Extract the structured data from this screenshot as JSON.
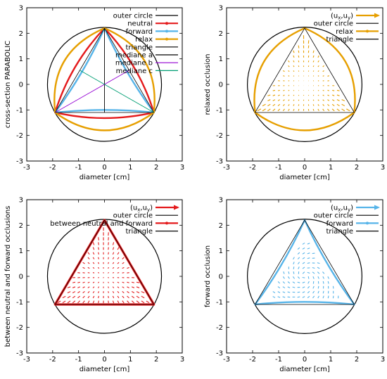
{
  "chart_data": [
    {
      "type": "line",
      "xlabel": "diameter [cm]",
      "ylabel": "cross-section PARABOLIC",
      "xlim": [
        -3,
        3
      ],
      "ylim": [
        -3,
        3
      ],
      "xticks": [
        "-3",
        "-2",
        "-1",
        "0",
        "1",
        "2",
        "3"
      ],
      "yticks": [
        "-3",
        "-2",
        "-1",
        "0",
        "1",
        "2",
        "3"
      ],
      "legend_position": "top-right",
      "series": [
        {
          "name": "outer circle",
          "kind": "circle",
          "color": "#000000",
          "radius": 2.2
        },
        {
          "name": "neutral",
          "kind": "curved-triangle",
          "color": "#e41a1c",
          "bulge": 0.22
        },
        {
          "name": "forward",
          "kind": "curved-triangle",
          "color": "#56b4e9",
          "bulge": -0.1
        },
        {
          "name": "relax",
          "kind": "curved-triangle",
          "color": "#e69f00",
          "bulge": 0.7
        },
        {
          "name": "triangle",
          "kind": "triangle",
          "color": "#000000",
          "vertices": [
            [
              0,
              2.2
            ],
            [
              -1.905,
              -1.1
            ],
            [
              1.905,
              -1.1
            ]
          ]
        },
        {
          "name": "mediane a",
          "kind": "segment",
          "color": "#000000",
          "from": [
            0,
            2.2
          ],
          "to": [
            0,
            -1.1
          ]
        },
        {
          "name": "mediane b",
          "kind": "segment",
          "color": "#9400d3",
          "from": [
            -1.905,
            -1.1
          ],
          "to": [
            0.95,
            0.55
          ]
        },
        {
          "name": "mediane c",
          "kind": "segment",
          "color": "#009e73",
          "from": [
            1.905,
            -1.1
          ],
          "to": [
            -0.95,
            0.55
          ]
        }
      ]
    },
    {
      "type": "line",
      "xlabel": "diameter [cm]",
      "ylabel": "relaxed occlusion",
      "xlim": [
        -3,
        3
      ],
      "ylim": [
        -3,
        3
      ],
      "xticks": [
        "-3",
        "-2",
        "-1",
        "0",
        "1",
        "2",
        "3"
      ],
      "yticks": [
        "-3",
        "-2",
        "-1",
        "0",
        "1",
        "2",
        "3"
      ],
      "legend_position": "top-right",
      "series": [
        {
          "name": "(u_x,u_y)",
          "kind": "vector-field",
          "color": "#e69f00",
          "field": "relax"
        },
        {
          "name": "outer circle",
          "kind": "circle",
          "color": "#000000",
          "radius": 2.2
        },
        {
          "name": "relax",
          "kind": "curved-triangle",
          "color": "#e69f00",
          "bulge": 0.7
        },
        {
          "name": "triangle",
          "kind": "triangle",
          "color": "#000000",
          "vertices": [
            [
              0,
              2.2
            ],
            [
              -1.905,
              -1.1
            ],
            [
              1.905,
              -1.1
            ]
          ]
        }
      ]
    },
    {
      "type": "line",
      "xlabel": "diameter [cm]",
      "ylabel": "between neutral and forward occlusions",
      "xlim": [
        -3,
        3
      ],
      "ylim": [
        -3,
        3
      ],
      "xticks": [
        "-3",
        "-2",
        "-1",
        "0",
        "1",
        "2",
        "3"
      ],
      "yticks": [
        "-3",
        "-2",
        "-1",
        "0",
        "1",
        "2",
        "3"
      ],
      "legend_position": "top-right",
      "series": [
        {
          "name": "(u_x,u_y)",
          "kind": "vector-field",
          "color": "#e41a1c",
          "field": "between"
        },
        {
          "name": "outer circle",
          "kind": "circle",
          "color": "#000000",
          "radius": 2.2
        },
        {
          "name": "between neutral and forward",
          "kind": "curved-triangle",
          "color": "#e41a1c",
          "bulge": 0.0
        },
        {
          "name": "triangle",
          "kind": "triangle",
          "color": "#000000",
          "vertices": [
            [
              0,
              2.2
            ],
            [
              -1.905,
              -1.1
            ],
            [
              1.905,
              -1.1
            ]
          ]
        }
      ]
    },
    {
      "type": "line",
      "xlabel": "diameter [cm]",
      "ylabel": "forward occlusion",
      "xlim": [
        -3,
        3
      ],
      "ylim": [
        -3,
        3
      ],
      "xticks": [
        "-3",
        "-2",
        "-1",
        "0",
        "1",
        "2",
        "3"
      ],
      "yticks": [
        "-3",
        "-2",
        "-1",
        "0",
        "1",
        "2",
        "3"
      ],
      "legend_position": "top-right",
      "series": [
        {
          "name": "(u_x,u_y)",
          "kind": "vector-field",
          "color": "#56b4e9",
          "field": "forward"
        },
        {
          "name": "outer circle",
          "kind": "circle",
          "color": "#000000",
          "radius": 2.2
        },
        {
          "name": "forward",
          "kind": "curved-triangle",
          "color": "#56b4e9",
          "bulge": -0.1
        },
        {
          "name": "triangle",
          "kind": "triangle",
          "color": "#000000",
          "vertices": [
            [
              0,
              2.2
            ],
            [
              -1.905,
              -1.1
            ],
            [
              1.905,
              -1.1
            ]
          ]
        }
      ]
    }
  ]
}
